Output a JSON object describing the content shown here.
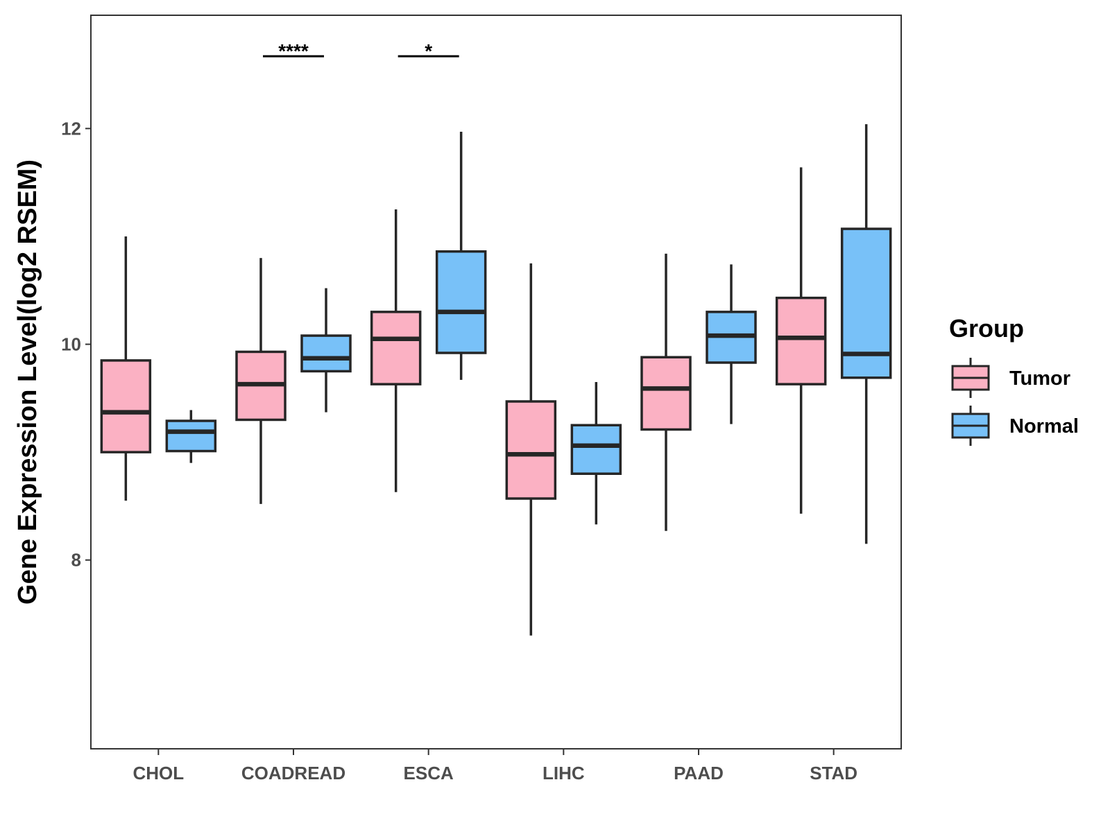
{
  "chart_data": {
    "type": "box",
    "title": "",
    "xlabel": "",
    "ylabel": "Gene Expression Level(log2 RSEM)",
    "ylim": [
      6.25,
      13.05
    ],
    "yticks": [
      8,
      10,
      12
    ],
    "categories": [
      "CHOL",
      "COADREAD",
      "ESCA",
      "LIHC",
      "PAAD",
      "STAD"
    ],
    "legend": {
      "title": "Group",
      "position": "right",
      "items": [
        {
          "name": "Tumor",
          "color": "#FBB1C3"
        },
        {
          "name": "Normal",
          "color": "#78C1F8"
        }
      ]
    },
    "series": [
      {
        "name": "Tumor",
        "color": "#FBB1C3",
        "boxes": [
          {
            "min": 8.55,
            "q1": 9.0,
            "median": 9.37,
            "q3": 9.85,
            "max": 11.0
          },
          {
            "min": 8.52,
            "q1": 9.3,
            "median": 9.63,
            "q3": 9.93,
            "max": 10.8
          },
          {
            "min": 8.63,
            "q1": 9.63,
            "median": 10.05,
            "q3": 10.3,
            "max": 11.25
          },
          {
            "min": 7.3,
            "q1": 8.57,
            "median": 8.98,
            "q3": 9.47,
            "max": 10.75
          },
          {
            "min": 8.27,
            "q1": 9.21,
            "median": 9.59,
            "q3": 9.88,
            "max": 10.84
          },
          {
            "min": 8.43,
            "q1": 9.63,
            "median": 10.06,
            "q3": 10.43,
            "max": 11.64
          }
        ]
      },
      {
        "name": "Normal",
        "color": "#78C1F8",
        "boxes": [
          {
            "min": 8.9,
            "q1": 9.01,
            "median": 9.19,
            "q3": 9.29,
            "max": 9.39
          },
          {
            "min": 9.37,
            "q1": 9.75,
            "median": 9.87,
            "q3": 10.08,
            "max": 10.52
          },
          {
            "min": 9.67,
            "q1": 9.92,
            "median": 10.3,
            "q3": 10.86,
            "max": 11.97
          },
          {
            "min": 8.33,
            "q1": 8.8,
            "median": 9.06,
            "q3": 9.25,
            "max": 9.65
          },
          {
            "min": 9.26,
            "q1": 9.83,
            "median": 10.08,
            "q3": 10.3,
            "max": 10.74
          },
          {
            "min": 8.15,
            "q1": 9.69,
            "median": 9.91,
            "q3": 11.07,
            "max": 12.04
          }
        ]
      }
    ],
    "significance": [
      {
        "category": "COADREAD",
        "label": "****",
        "y": 12.67
      },
      {
        "category": "ESCA",
        "label": "*",
        "y": 12.67
      }
    ]
  }
}
